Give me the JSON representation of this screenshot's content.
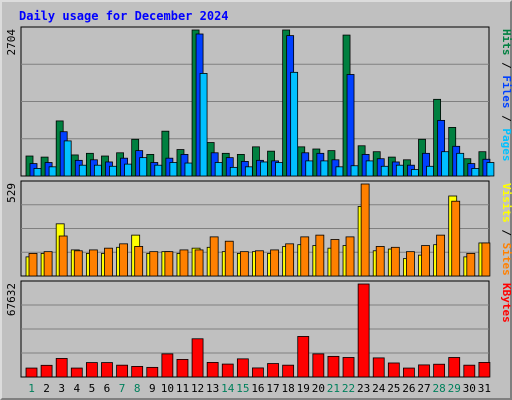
{
  "title": "Daily usage for December 2024",
  "colors": {
    "background": "#c0c0c0",
    "title": "#0000ff",
    "grid": "#808080",
    "pages": "#00c0ff",
    "files": "#0040ff",
    "hits": "#008040",
    "visits": "#ffff00",
    "sites": "#ff8000",
    "kbytes": "#ff0000",
    "weekend_day": "#00805c",
    "weekday": "#000000"
  },
  "chart_data": [
    {
      "type": "bar",
      "panel": "hits-files-pages",
      "ymax": 2704,
      "ymax_label": "2704",
      "axis_label_parts": [
        "Pages",
        "Files",
        "Hits"
      ],
      "axis_label_separators": [
        " / ",
        " / "
      ],
      "x": [
        1,
        2,
        3,
        4,
        5,
        6,
        7,
        8,
        9,
        10,
        11,
        12,
        13,
        14,
        15,
        16,
        17,
        18,
        19,
        20,
        21,
        22,
        23,
        24,
        25,
        26,
        27,
        28,
        29,
        30,
        31
      ],
      "series": [
        {
          "name": "Hits",
          "color": "#008040",
          "values": [
            370,
            350,
            1020,
            390,
            420,
            370,
            430,
            680,
            400,
            830,
            490,
            2704,
            620,
            420,
            400,
            540,
            460,
            2704,
            540,
            500,
            470,
            2610,
            560,
            450,
            350,
            300,
            680,
            1420,
            900,
            320,
            450
          ]
        },
        {
          "name": "Files",
          "color": "#0040ff",
          "values": [
            230,
            250,
            820,
            290,
            300,
            260,
            330,
            470,
            250,
            330,
            400,
            2630,
            430,
            340,
            270,
            290,
            280,
            2600,
            430,
            420,
            300,
            1880,
            400,
            320,
            260,
            200,
            420,
            1030,
            550,
            230,
            310
          ]
        },
        {
          "name": "Pages",
          "color": "#00c0ff",
          "values": [
            140,
            170,
            650,
            200,
            200,
            180,
            220,
            340,
            200,
            250,
            240,
            1900,
            250,
            160,
            170,
            260,
            250,
            1920,
            280,
            280,
            170,
            190,
            280,
            180,
            200,
            120,
            180,
            450,
            420,
            140,
            250
          ]
        }
      ]
    },
    {
      "type": "bar",
      "panel": "visits-sites",
      "ymax": 529,
      "ymax_label": "529",
      "axis_label_parts": [
        "Sites",
        "Visits"
      ],
      "axis_label_separators": [
        " / "
      ],
      "x": [
        1,
        2,
        3,
        4,
        5,
        6,
        7,
        8,
        9,
        10,
        11,
        12,
        13,
        14,
        15,
        16,
        17,
        18,
        19,
        20,
        21,
        22,
        23,
        24,
        25,
        26,
        27,
        28,
        29,
        30,
        31
      ],
      "series": [
        {
          "name": "Visits",
          "color": "#ffff00",
          "values": [
            110,
            130,
            300,
            150,
            130,
            130,
            165,
            235,
            130,
            140,
            130,
            160,
            165,
            140,
            130,
            140,
            130,
            170,
            180,
            175,
            160,
            175,
            400,
            145,
            155,
            100,
            120,
            180,
            460,
            110,
            190
          ]
        },
        {
          "name": "Sites",
          "color": "#ff8000",
          "values": [
            130,
            140,
            230,
            145,
            150,
            160,
            185,
            170,
            140,
            140,
            150,
            150,
            225,
            200,
            140,
            145,
            150,
            185,
            225,
            235,
            210,
            225,
            529,
            170,
            165,
            140,
            175,
            235,
            430,
            130,
            190
          ]
        }
      ]
    },
    {
      "type": "bar",
      "panel": "kbytes",
      "ymax": 67632,
      "ymax_label": "67632",
      "axis_label_parts": [
        "KBytes"
      ],
      "axis_label_separators": [],
      "x": [
        1,
        2,
        3,
        4,
        5,
        6,
        7,
        8,
        9,
        10,
        11,
        12,
        13,
        14,
        15,
        16,
        17,
        18,
        19,
        20,
        21,
        22,
        23,
        24,
        25,
        26,
        27,
        28,
        29,
        30,
        31
      ],
      "x_tick_labels": [
        "1",
        "2",
        "3",
        "4",
        "5",
        "6",
        "7",
        "8",
        "9",
        "10",
        "11",
        "12",
        "13",
        "14",
        "15",
        "16",
        "17",
        "18",
        "19",
        "20",
        "21",
        "22",
        "23",
        "24",
        "25",
        "26",
        "27",
        "28",
        "29",
        "30",
        "31"
      ],
      "weekend_days": [
        1,
        7,
        8,
        14,
        15,
        21,
        22,
        28,
        29
      ],
      "series": [
        {
          "name": "KBytes",
          "color": "#ff0000",
          "values": [
            6500,
            8500,
            13500,
            6500,
            10500,
            10500,
            8600,
            7700,
            7000,
            16800,
            12800,
            27800,
            10600,
            9400,
            13200,
            6600,
            9800,
            8600,
            29500,
            16800,
            15000,
            14200,
            67632,
            13900,
            10200,
            6500,
            8800,
            9300,
            14200,
            8600,
            10600
          ]
        }
      ]
    }
  ]
}
